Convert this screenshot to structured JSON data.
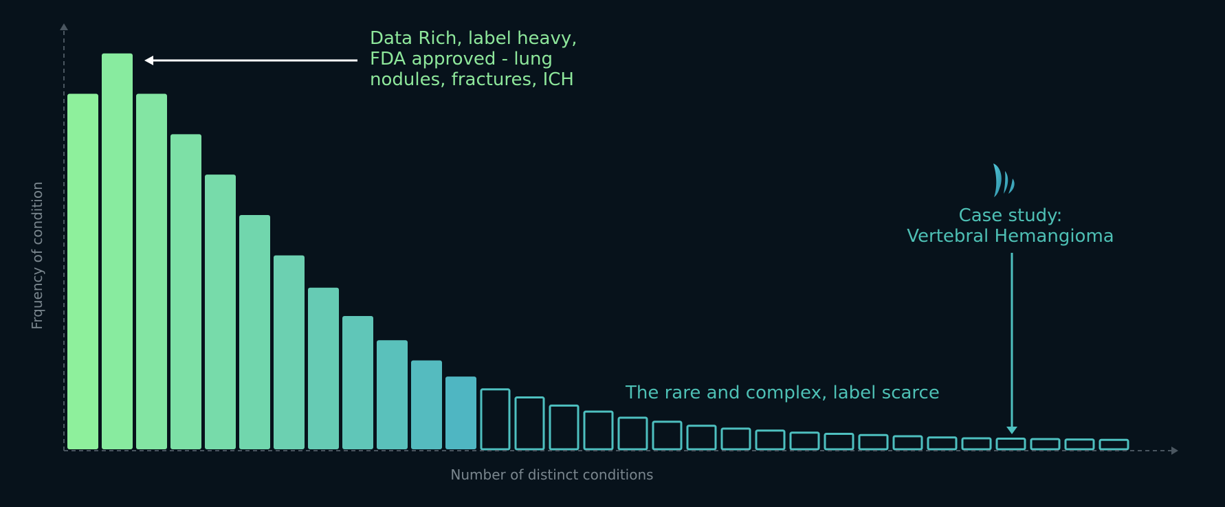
{
  "chart_data": {
    "type": "bar",
    "title": "",
    "xlabel": "Number of distinct conditions",
    "ylabel": "Frquency of condition",
    "ylim": [
      0,
      100
    ],
    "grid": false,
    "filled_bars": 12,
    "values": [
      88,
      98,
      88,
      78,
      68,
      58,
      48,
      40,
      33,
      27,
      22,
      18,
      15,
      13,
      11,
      9.5,
      8,
      7,
      6,
      5.3,
      4.8,
      4.3,
      4,
      3.7,
      3.4,
      3.1,
      2.9,
      2.8,
      2.7,
      2.6,
      2.5
    ],
    "highlighted_index": 27,
    "annotations": {
      "head": [
        "Data Rich, label heavy,",
        "FDA approved - lung",
        "nodules, fractures, ICH"
      ],
      "case_study": [
        "Case study:",
        "Vertebral Hemangioma"
      ],
      "tail": "The rare and complex, label scarce"
    },
    "colors": {
      "background": "#07121b",
      "axis": "#4a5660",
      "head_bars_start": "#8ef09c",
      "head_bars_end": "#4fb6c2",
      "tail_outline": "#4ec0c0",
      "head_text": "#8ee79b",
      "tail_text": "#4ec0b5",
      "axis_label": "#7a868e"
    },
    "icons": [
      "brand-logo-icon"
    ]
  }
}
